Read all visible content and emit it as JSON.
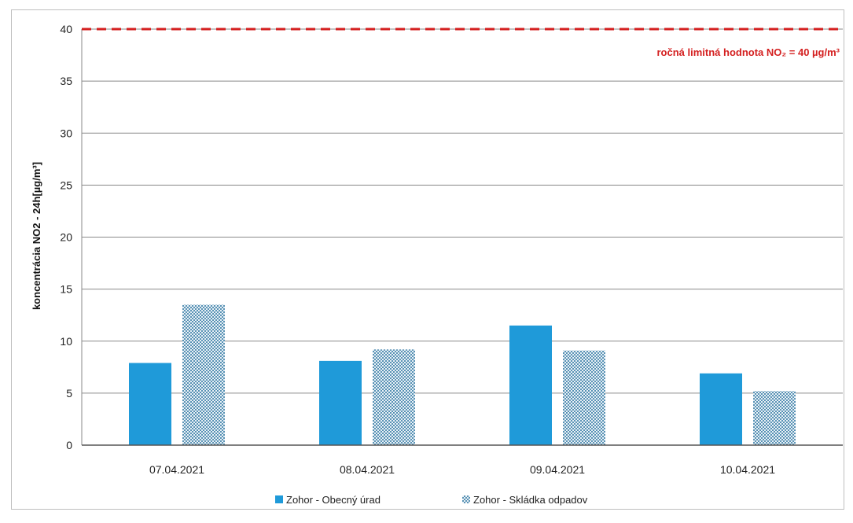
{
  "chart_data": {
    "type": "bar",
    "categories": [
      "07.04.2021",
      "08.04.2021",
      "09.04.2021",
      "10.04.2021"
    ],
    "series": [
      {
        "name": "Zohor - Obecný úrad",
        "values": [
          7.9,
          8.1,
          11.5,
          6.9
        ],
        "color": "#1f9ad9",
        "pattern": "solid"
      },
      {
        "name": "Zohor - Skládka odpadov",
        "values": [
          13.5,
          9.2,
          9.1,
          5.2
        ],
        "color": "#6aa6c8",
        "pattern": "dotted"
      }
    ],
    "ylabel": "koncentrácia NO2 - 24h[µg/m³]",
    "ylim": [
      0,
      40
    ],
    "yticks": [
      0,
      5,
      10,
      15,
      20,
      25,
      30,
      35,
      40
    ],
    "grid": true,
    "limit_line": {
      "value": 40,
      "label": "ročná limitná hodnota NO₂ = 40 µg/m³",
      "color": "#d42020"
    },
    "legend_position": "bottom"
  }
}
